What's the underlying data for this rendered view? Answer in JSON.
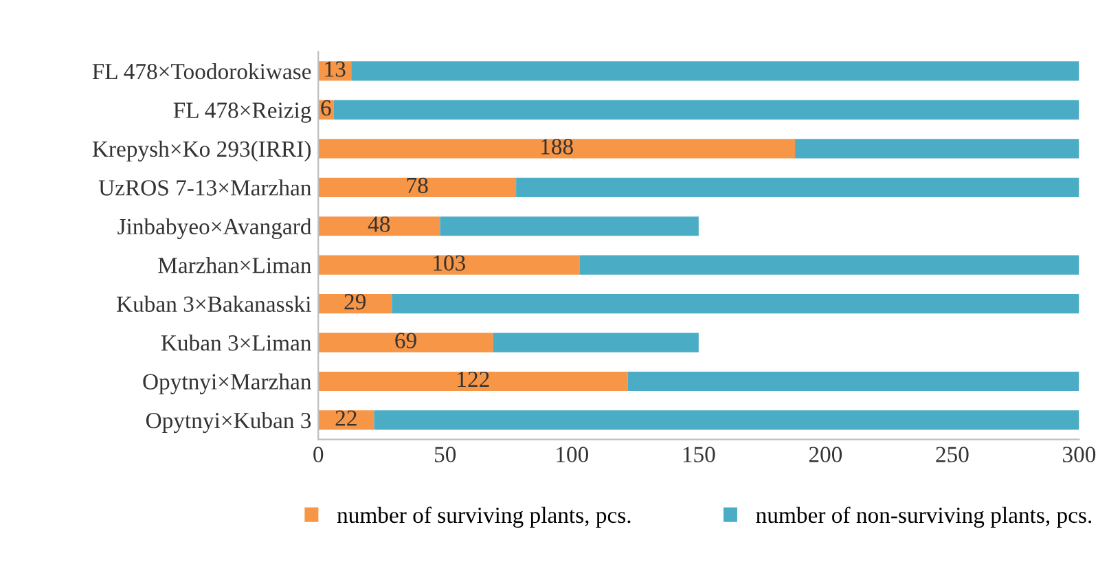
{
  "chart_data": {
    "type": "bar",
    "orientation": "horizontal",
    "stacked": true,
    "categories": [
      "FL 478×Toodorokiwase",
      "FL 478×Reizig",
      "Krepysh×Ko 293(IRRI)",
      "UzROS 7-13×Marzhan",
      "Jinbabyeo×Avangard",
      "Marzhan×Liman",
      "Kuban 3×Bakanasski",
      "Kuban 3×Liman",
      "Opytnyi×Marzhan",
      "Opytnyi×Kuban 3"
    ],
    "series": [
      {
        "name": "number of surviving plants, pcs.",
        "color": "#f79646",
        "values": [
          13,
          6,
          188,
          78,
          48,
          103,
          29,
          69,
          122,
          22
        ],
        "value_labels": [
          "13",
          "6",
          "188",
          "78",
          "48",
          "103",
          "29",
          "69",
          "122",
          "22"
        ]
      },
      {
        "name": "number of non-surviving plants, pcs.",
        "color": "#4bacc6",
        "values": [
          287,
          294,
          112,
          222,
          102,
          197,
          271,
          81,
          178,
          278
        ]
      }
    ],
    "xlim": [
      0,
      300
    ],
    "xticks": [
      0,
      50,
      100,
      150,
      200,
      250,
      300
    ],
    "grid": false,
    "legend": "bottom"
  }
}
